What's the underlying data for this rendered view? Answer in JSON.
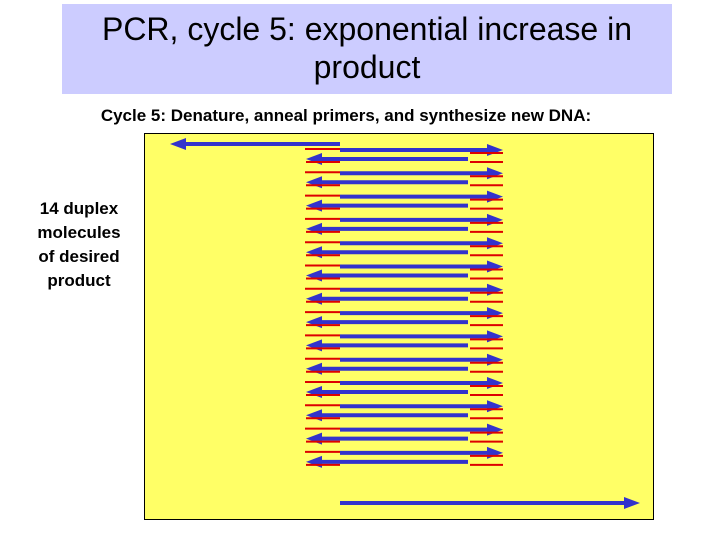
{
  "slide": {
    "title_line1": "PCR, cycle 5: exponential increase in",
    "title_line2": "product",
    "subtitle": "Cycle 5: Denature, anneal primers, and synthesize new DNA:",
    "side_label_lines": [
      "14 duplex",
      "molecules",
      "of desired",
      "product"
    ]
  },
  "diagram": {
    "duplex_count": 14,
    "colors": {
      "title_background": "#ccccff",
      "panel_background": "#ffff66",
      "strand": "#3333cc",
      "primer": "#dd0000"
    }
  }
}
